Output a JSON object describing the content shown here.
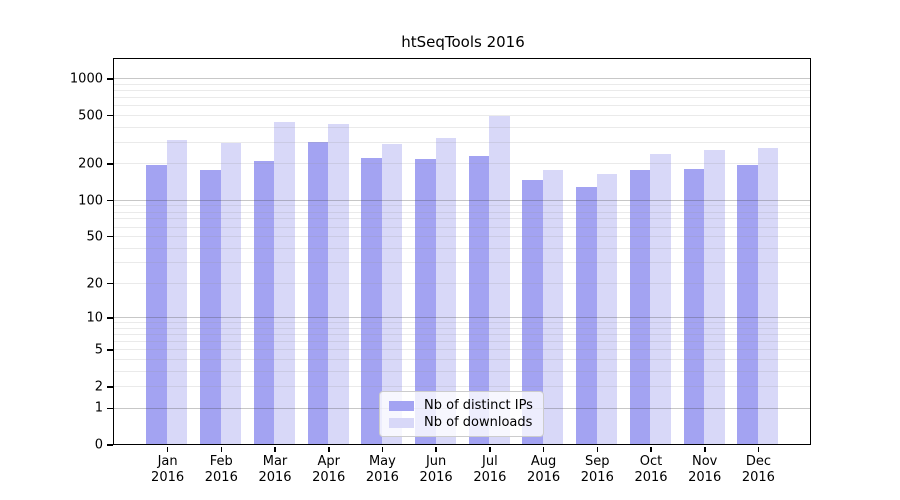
{
  "chart_data": {
    "type": "bar",
    "title": "htSeqTools 2016",
    "xlabel": "",
    "ylabel": "",
    "yscale": "log1p",
    "ylim": [
      0,
      1430
    ],
    "grid": "both",
    "legend_position": "lower center inside",
    "axis_color": "#000000",
    "major_grid_color": "#c9c9c9",
    "minor_grid_color": "#e9e9e9",
    "categories": [
      {
        "line1": "Jan",
        "line2": "2016"
      },
      {
        "line1": "Feb",
        "line2": "2016"
      },
      {
        "line1": "Mar",
        "line2": "2016"
      },
      {
        "line1": "Apr",
        "line2": "2016"
      },
      {
        "line1": "May",
        "line2": "2016"
      },
      {
        "line1": "Jun",
        "line2": "2016"
      },
      {
        "line1": "Jul",
        "line2": "2016"
      },
      {
        "line1": "Aug",
        "line2": "2016"
      },
      {
        "line1": "Sep",
        "line2": "2016"
      },
      {
        "line1": "Oct",
        "line2": "2016"
      },
      {
        "line1": "Nov",
        "line2": "2016"
      },
      {
        "line1": "Dec",
        "line2": "2016"
      }
    ],
    "yticks": [
      {
        "value": 0,
        "label": "0",
        "major": true
      },
      {
        "value": 1,
        "label": "1",
        "major": true
      },
      {
        "value": 2,
        "label": "2",
        "major": false
      },
      {
        "value": 5,
        "label": "5",
        "major": false
      },
      {
        "value": 10,
        "label": "10",
        "major": true
      },
      {
        "value": 20,
        "label": "20",
        "major": false
      },
      {
        "value": 50,
        "label": "50",
        "major": false
      },
      {
        "value": 100,
        "label": "100",
        "major": true
      },
      {
        "value": 200,
        "label": "200",
        "major": false
      },
      {
        "value": 500,
        "label": "500",
        "major": false
      },
      {
        "value": 1000,
        "label": "1000",
        "major": true
      }
    ],
    "series": [
      {
        "name": "Nb of distinct IPs",
        "color": "#a3a3f2",
        "values": [
          195,
          178,
          208,
          300,
          221,
          216,
          230,
          145,
          127,
          176,
          179,
          195
        ]
      },
      {
        "name": "Nb of downloads",
        "color": "#d8d8f8",
        "values": [
          310,
          292,
          440,
          424,
          287,
          323,
          495,
          175,
          165,
          238,
          257,
          266
        ]
      }
    ]
  }
}
